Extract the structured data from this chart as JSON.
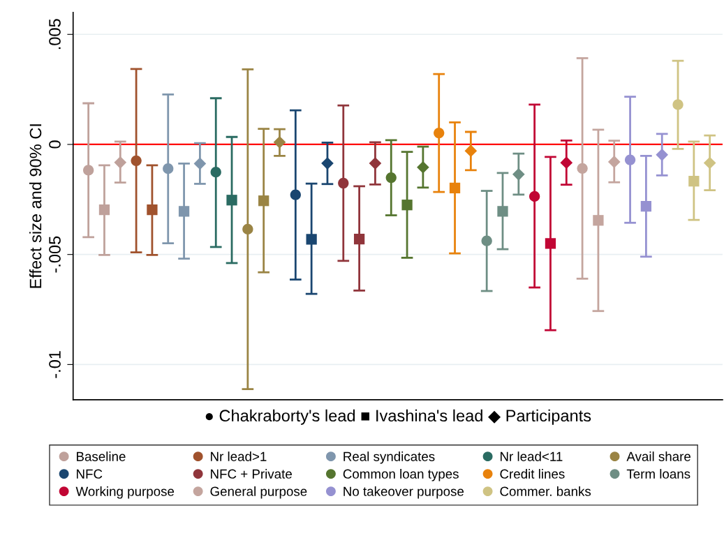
{
  "chart_data": {
    "type": "scatter",
    "ylabel": "Effect size and 90% CI",
    "xlabel": "● Chakraborty's lead ■ Ivashina's lead ◆ Participants",
    "categories": [
      null,
      null,
      null,
      null,
      null,
      null,
      null,
      null,
      null,
      null,
      null,
      null,
      null,
      null,
      null,
      null,
      null,
      null,
      null,
      null,
      null,
      null,
      null,
      null,
      null,
      null,
      null,
      null,
      null,
      null,
      null,
      null,
      null,
      null,
      null,
      null,
      null,
      null,
      null,
      null
    ],
    "ylim": [
      -0.0116,
      0.006
    ],
    "yticks": [
      {
        "value": -0.01,
        "label": "-.01"
      },
      {
        "value": -0.005,
        "label": "-.005"
      },
      0,
      {
        "value": 0.005,
        "label": ".005"
      }
    ],
    "grid": "y",
    "legend": "bottom",
    "tick_labels": "y",
    "marker": [
      "circle",
      "square",
      "diamond"
    ],
    "ref_lines": [
      {
        "axis": "y",
        "value": 0,
        "color": "#ff0000"
      }
    ],
    "series": [
      {
        "name": "Baseline",
        "color": "#bfa19b",
        "values": [
          -0.00117,
          -0.00297,
          -0.00082,
          null,
          null,
          null,
          null,
          null,
          null,
          null,
          null,
          null,
          null,
          null,
          null,
          null,
          null,
          null,
          null,
          null,
          null,
          null,
          null,
          null,
          null,
          null,
          null,
          null,
          null,
          null,
          null,
          null,
          null,
          null,
          null,
          null,
          null,
          null,
          null,
          null
        ],
        "errors": [
          [
            -0.00421,
            0.00187
          ],
          [
            -0.00502,
            -0.00095
          ],
          [
            -0.00173,
            0.00013
          ],
          null,
          null,
          null,
          null,
          null,
          null,
          null,
          null,
          null,
          null,
          null,
          null,
          null,
          null,
          null,
          null,
          null,
          null,
          null,
          null,
          null,
          null,
          null,
          null,
          null,
          null,
          null,
          null,
          null,
          null,
          null,
          null,
          null,
          null,
          null,
          null,
          null
        ]
      },
      {
        "name": "Nr lead>1",
        "color": "#a0522d",
        "values": [
          null,
          null,
          null,
          -0.00074,
          -0.00297,
          null,
          null,
          null,
          null,
          null,
          null,
          null,
          null,
          null,
          null,
          null,
          null,
          null,
          null,
          null,
          null,
          null,
          null,
          null,
          null,
          null,
          null,
          null,
          null,
          null,
          null,
          null,
          null,
          null,
          null,
          null,
          null,
          null,
          null,
          null
        ],
        "errors": [
          null,
          null,
          null,
          [
            -0.0049,
            0.00343
          ],
          [
            -0.00502,
            -0.00095
          ],
          null,
          null,
          null,
          null,
          null,
          null,
          null,
          null,
          null,
          null,
          null,
          null,
          null,
          null,
          null,
          null,
          null,
          null,
          null,
          null,
          null,
          null,
          null,
          null,
          null,
          null,
          null,
          null,
          null,
          null,
          null,
          null,
          null,
          null,
          null
        ]
      },
      {
        "name": "Real syndicates",
        "color": "#7f96ad",
        "values": [
          null,
          null,
          null,
          null,
          null,
          -0.0011,
          -0.00304,
          -0.00087,
          null,
          null,
          null,
          null,
          null,
          null,
          null,
          null,
          null,
          null,
          null,
          null,
          null,
          null,
          null,
          null,
          null,
          null,
          null,
          null,
          null,
          null,
          null,
          null,
          null,
          null,
          null,
          null,
          null,
          null,
          null,
          null
        ],
        "errors": [
          null,
          null,
          null,
          null,
          null,
          [
            -0.00449,
            0.00227
          ],
          [
            -0.00519,
            -0.00087
          ],
          [
            -0.00179,
            6e-05
          ],
          null,
          null,
          null,
          null,
          null,
          null,
          null,
          null,
          null,
          null,
          null,
          null,
          null,
          null,
          null,
          null,
          null,
          null,
          null,
          null,
          null,
          null,
          null,
          null,
          null,
          null,
          null,
          null,
          null,
          null,
          null,
          null
        ]
      },
      {
        "name": "Nr lead<11",
        "color": "#2a6b62",
        "values": [
          null,
          null,
          null,
          null,
          null,
          null,
          null,
          null,
          -0.00126,
          -0.00253,
          null,
          null,
          null,
          null,
          null,
          null,
          null,
          null,
          null,
          null,
          null,
          null,
          null,
          null,
          null,
          null,
          null,
          null,
          null,
          null,
          null,
          null,
          null,
          null,
          null,
          null,
          null,
          null,
          null,
          null
        ],
        "errors": [
          null,
          null,
          null,
          null,
          null,
          null,
          null,
          null,
          [
            -0.00466,
            0.0021
          ],
          [
            -0.00539,
            0.00034
          ],
          null,
          null,
          null,
          null,
          null,
          null,
          null,
          null,
          null,
          null,
          null,
          null,
          null,
          null,
          null,
          null,
          null,
          null,
          null,
          null,
          null,
          null,
          null,
          null,
          null,
          null,
          null,
          null,
          null,
          null
        ]
      },
      {
        "name": "Avail share",
        "color": "#9a8444",
        "values": [
          null,
          null,
          null,
          null,
          null,
          null,
          null,
          null,
          null,
          null,
          -0.00385,
          -0.00256,
          0.0001,
          null,
          null,
          null,
          null,
          null,
          null,
          null,
          null,
          null,
          null,
          null,
          null,
          null,
          null,
          null,
          null,
          null,
          null,
          null,
          null,
          null,
          null,
          null,
          null,
          null,
          null,
          null
        ],
        "errors": [
          null,
          null,
          null,
          null,
          null,
          null,
          null,
          null,
          null,
          null,
          [
            -0.01112,
            0.00341
          ],
          [
            -0.00581,
            0.00071
          ],
          [
            -0.00052,
            0.00069
          ],
          null,
          null,
          null,
          null,
          null,
          null,
          null,
          null,
          null,
          null,
          null,
          null,
          null,
          null,
          null,
          null,
          null,
          null,
          null,
          null,
          null,
          null,
          null,
          null,
          null,
          null,
          null
        ]
      },
      {
        "name": "NFC",
        "color": "#1a4670",
        "values": [
          null,
          null,
          null,
          null,
          null,
          null,
          null,
          null,
          null,
          null,
          null,
          null,
          null,
          -0.00229,
          -0.00431,
          -0.00086,
          null,
          null,
          null,
          null,
          null,
          null,
          null,
          null,
          null,
          null,
          null,
          null,
          null,
          null,
          null,
          null,
          null,
          null,
          null,
          null,
          null,
          null,
          null,
          null
        ],
        "errors": [
          null,
          null,
          null,
          null,
          null,
          null,
          null,
          null,
          null,
          null,
          null,
          null,
          null,
          [
            -0.00614,
            0.00155
          ],
          [
            -0.00679,
            -0.00178
          ],
          [
            -0.0018,
            8e-05
          ],
          null,
          null,
          null,
          null,
          null,
          null,
          null,
          null,
          null,
          null,
          null,
          null,
          null,
          null,
          null,
          null,
          null,
          null,
          null,
          null,
          null,
          null,
          null,
          null
        ]
      },
      {
        "name": "NFC + Private",
        "color": "#90353b",
        "values": [
          null,
          null,
          null,
          null,
          null,
          null,
          null,
          null,
          null,
          null,
          null,
          null,
          null,
          null,
          null,
          null,
          -0.00176,
          -0.0043,
          -0.00086,
          null,
          null,
          null,
          null,
          null,
          null,
          null,
          null,
          null,
          null,
          null,
          null,
          null,
          null,
          null,
          null,
          null,
          null,
          null,
          null,
          null
        ],
        "errors": [
          null,
          null,
          null,
          null,
          null,
          null,
          null,
          null,
          null,
          null,
          null,
          null,
          null,
          null,
          null,
          null,
          [
            -0.00529,
            0.00177
          ],
          [
            -0.00664,
            -0.0019
          ],
          [
            -0.00182,
            0.0001
          ],
          null,
          null,
          null,
          null,
          null,
          null,
          null,
          null,
          null,
          null,
          null,
          null,
          null,
          null,
          null,
          null,
          null,
          null,
          null,
          null,
          null
        ]
      },
      {
        "name": "Common loan types",
        "color": "#55752f",
        "values": [
          null,
          null,
          null,
          null,
          null,
          null,
          null,
          null,
          null,
          null,
          null,
          null,
          null,
          null,
          null,
          null,
          null,
          null,
          null,
          -0.00151,
          -0.00275,
          -0.00104,
          null,
          null,
          null,
          null,
          null,
          null,
          null,
          null,
          null,
          null,
          null,
          null,
          null,
          null,
          null,
          null,
          null,
          null
        ],
        "errors": [
          null,
          null,
          null,
          null,
          null,
          null,
          null,
          null,
          null,
          null,
          null,
          null,
          null,
          null,
          null,
          null,
          null,
          null,
          null,
          [
            -0.00322,
            0.00019
          ],
          [
            -0.00515,
            -0.00034
          ],
          [
            -0.00196,
            -0.0001
          ],
          null,
          null,
          null,
          null,
          null,
          null,
          null,
          null,
          null,
          null,
          null,
          null,
          null,
          null,
          null,
          null,
          null,
          null
        ]
      },
      {
        "name": "Credit lines",
        "color": "#e8820c",
        "values": [
          null,
          null,
          null,
          null,
          null,
          null,
          null,
          null,
          null,
          null,
          null,
          null,
          null,
          null,
          null,
          null,
          null,
          null,
          null,
          null,
          null,
          null,
          0.00052,
          -0.00198,
          -0.00029,
          null,
          null,
          null,
          null,
          null,
          null,
          null,
          null,
          null,
          null,
          null,
          null,
          null,
          null,
          null
        ],
        "errors": [
          null,
          null,
          null,
          null,
          null,
          null,
          null,
          null,
          null,
          null,
          null,
          null,
          null,
          null,
          null,
          null,
          null,
          null,
          null,
          null,
          null,
          null,
          [
            -0.00216,
            0.0032
          ],
          [
            -0.00495,
            0.001
          ],
          [
            -0.00117,
            0.00057
          ],
          null,
          null,
          null,
          null,
          null,
          null,
          null,
          null,
          null,
          null,
          null,
          null,
          null,
          null,
          null
        ]
      },
      {
        "name": "Term loans",
        "color": "#6e8e84",
        "values": [
          null,
          null,
          null,
          null,
          null,
          null,
          null,
          null,
          null,
          null,
          null,
          null,
          null,
          null,
          null,
          null,
          null,
          null,
          null,
          null,
          null,
          null,
          null,
          null,
          null,
          -0.00438,
          -0.00304,
          -0.00136,
          null,
          null,
          null,
          null,
          null,
          null,
          null,
          null,
          null,
          null,
          null,
          null
        ],
        "errors": [
          null,
          null,
          null,
          null,
          null,
          null,
          null,
          null,
          null,
          null,
          null,
          null,
          null,
          null,
          null,
          null,
          null,
          null,
          null,
          null,
          null,
          null,
          null,
          null,
          null,
          [
            -0.00666,
            -0.00211
          ],
          [
            -0.00476,
            -0.0013
          ],
          [
            -0.00228,
            -0.00042
          ],
          null,
          null,
          null,
          null,
          null,
          null,
          null,
          null,
          null,
          null,
          null,
          null
        ]
      },
      {
        "name": "Working purpose",
        "color": "#c10534",
        "values": [
          null,
          null,
          null,
          null,
          null,
          null,
          null,
          null,
          null,
          null,
          null,
          null,
          null,
          null,
          null,
          null,
          null,
          null,
          null,
          null,
          null,
          null,
          null,
          null,
          null,
          null,
          null,
          null,
          -0.00236,
          -0.0045,
          -0.00083,
          null,
          null,
          null,
          null,
          null,
          null,
          null,
          null,
          null
        ],
        "errors": [
          null,
          null,
          null,
          null,
          null,
          null,
          null,
          null,
          null,
          null,
          null,
          null,
          null,
          null,
          null,
          null,
          null,
          null,
          null,
          null,
          null,
          null,
          null,
          null,
          null,
          null,
          null,
          null,
          [
            -0.0065,
            0.00181
          ],
          [
            -0.00844,
            -0.00057
          ],
          [
            -0.00183,
            0.00018
          ],
          null,
          null,
          null,
          null,
          null,
          null,
          null,
          null,
          null
        ]
      },
      {
        "name": "General purpose",
        "color": "#c4a59e",
        "values": [
          null,
          null,
          null,
          null,
          null,
          null,
          null,
          null,
          null,
          null,
          null,
          null,
          null,
          null,
          null,
          null,
          null,
          null,
          null,
          null,
          null,
          null,
          null,
          null,
          null,
          null,
          null,
          null,
          null,
          null,
          null,
          -0.00109,
          -0.00345,
          -0.00079,
          null,
          null,
          null,
          null,
          null,
          null
        ],
        "errors": [
          null,
          null,
          null,
          null,
          null,
          null,
          null,
          null,
          null,
          null,
          null,
          null,
          null,
          null,
          null,
          null,
          null,
          null,
          null,
          null,
          null,
          null,
          null,
          null,
          null,
          null,
          null,
          null,
          null,
          null,
          null,
          [
            -0.0061,
            0.00392
          ],
          [
            -0.00757,
            0.00067
          ],
          [
            -0.00172,
            0.00017
          ],
          null,
          null,
          null,
          null,
          null,
          null
        ]
      },
      {
        "name": "No takeover purpose",
        "color": "#9591d1",
        "values": [
          null,
          null,
          null,
          null,
          null,
          null,
          null,
          null,
          null,
          null,
          null,
          null,
          null,
          null,
          null,
          null,
          null,
          null,
          null,
          null,
          null,
          null,
          null,
          null,
          null,
          null,
          null,
          null,
          null,
          null,
          null,
          null,
          null,
          null,
          -0.0007,
          -0.00281,
          -0.00047,
          null,
          null,
          null
        ],
        "errors": [
          null,
          null,
          null,
          null,
          null,
          null,
          null,
          null,
          null,
          null,
          null,
          null,
          null,
          null,
          null,
          null,
          null,
          null,
          null,
          null,
          null,
          null,
          null,
          null,
          null,
          null,
          null,
          null,
          null,
          null,
          null,
          null,
          null,
          null,
          [
            -0.00356,
            0.00217
          ],
          [
            -0.0051,
            -0.00052
          ],
          [
            -0.00141,
            0.00048
          ],
          null,
          null,
          null
        ]
      },
      {
        "name": "Commer. banks",
        "color": "#cfc383",
        "values": [
          null,
          null,
          null,
          null,
          null,
          null,
          null,
          null,
          null,
          null,
          null,
          null,
          null,
          null,
          null,
          null,
          null,
          null,
          null,
          null,
          null,
          null,
          null,
          null,
          null,
          null,
          null,
          null,
          null,
          null,
          null,
          null,
          null,
          null,
          null,
          null,
          null,
          0.00181,
          -0.00167,
          -0.00084
        ],
        "errors": [
          null,
          null,
          null,
          null,
          null,
          null,
          null,
          null,
          null,
          null,
          null,
          null,
          null,
          null,
          null,
          null,
          null,
          null,
          null,
          null,
          null,
          null,
          null,
          null,
          null,
          null,
          null,
          null,
          null,
          null,
          null,
          null,
          null,
          null,
          null,
          null,
          null,
          [
            -0.0002,
            0.0038
          ],
          [
            -0.00343,
            0.00013
          ],
          [
            -0.00208,
            0.00041
          ]
        ]
      }
    ]
  }
}
